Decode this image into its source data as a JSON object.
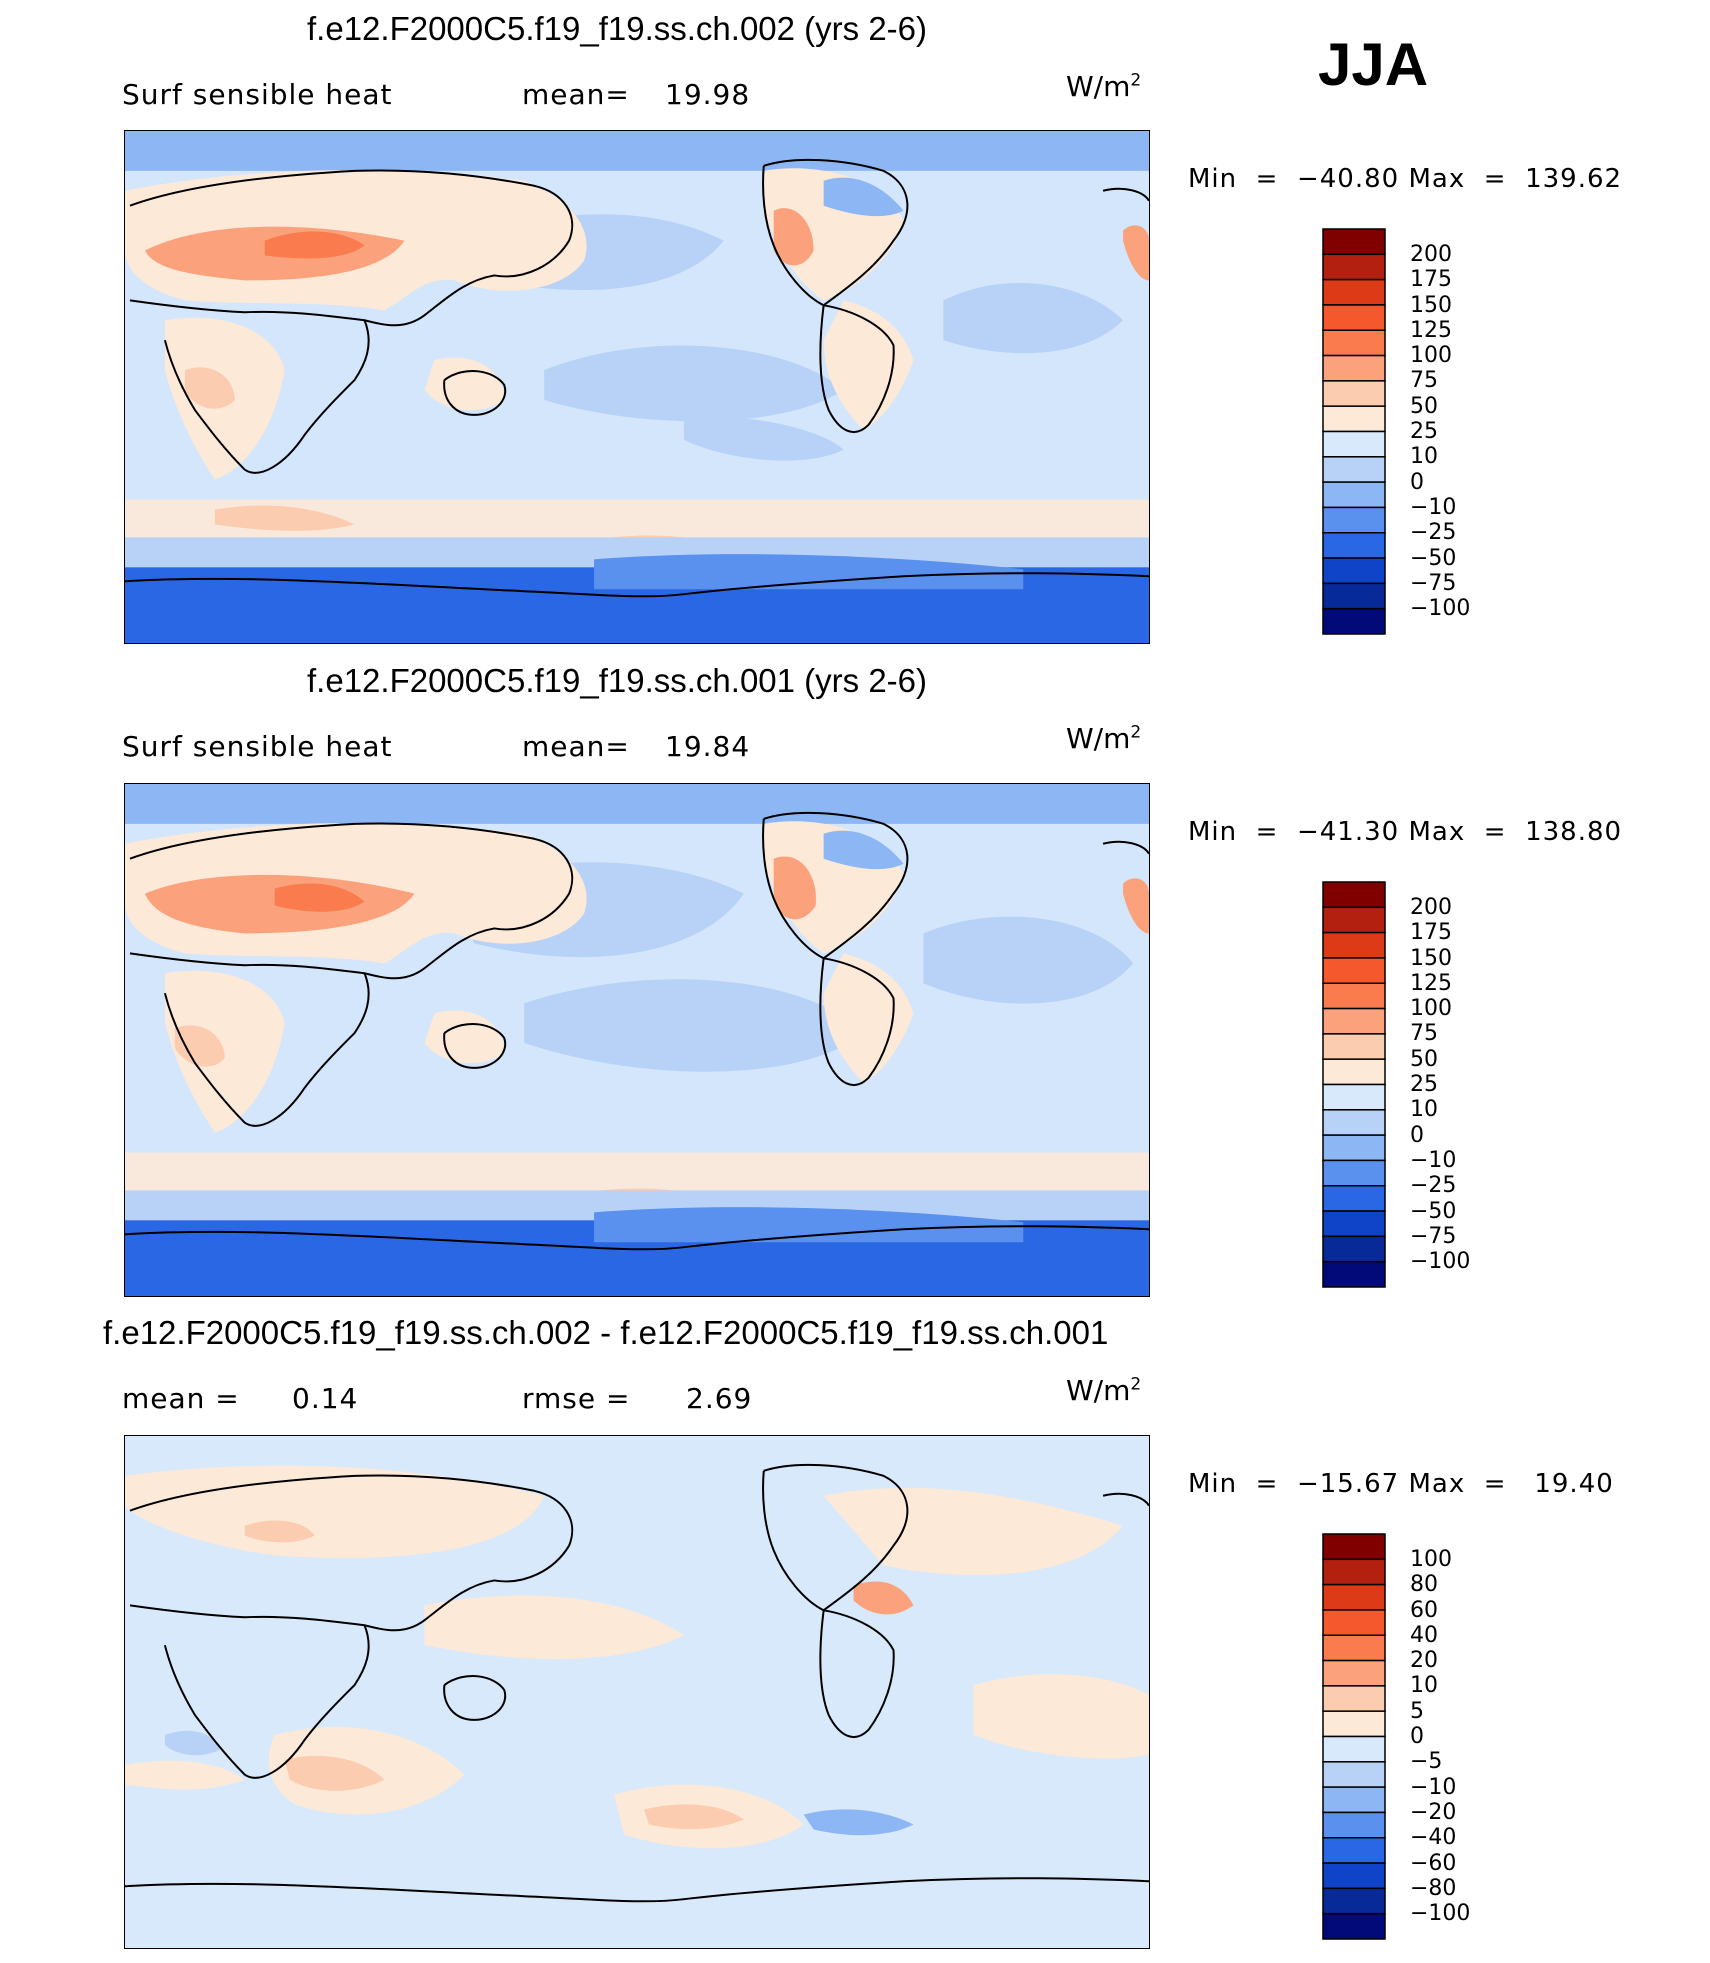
{
  "season": "JJA",
  "colors": {
    "ocean_base": "#d3e6fb",
    "land_base": "#fde3cf"
  },
  "panels": [
    {
      "title": "f.e12.F2000C5.f19_f19.ss.ch.002 (yrs 2-6)",
      "left_label": "Surf  sensible  heat",
      "stat_label": "mean=",
      "stat_value": "19.98",
      "units": "W/m",
      "units_exp": "2",
      "min_label": "Min",
      "min_value": "−40.80",
      "max_label": "Max",
      "max_value": "139.62",
      "cbar_labels": [
        "200",
        "175",
        "150",
        "125",
        "100",
        "75",
        "50",
        "25",
        "10",
        "0",
        "−10",
        "−25",
        "−50",
        "−75",
        "−100"
      ],
      "cbar_colors": [
        "#800000",
        "#b3200f",
        "#dd3a17",
        "#f6582e",
        "#fa7b4d",
        "#fba27c",
        "#fcccb0",
        "#fde9d8",
        "#d7e9fa",
        "#b8d2f7",
        "#8cb6f4",
        "#5a91ee",
        "#2a67e4",
        "#0f43c8",
        "#082a98",
        "#020a7a"
      ]
    },
    {
      "title": "f.e12.F2000C5.f19_f19.ss.ch.001 (yrs 2-6)",
      "left_label": "Surf  sensible  heat",
      "stat_label": "mean=",
      "stat_value": "19.84",
      "units": "W/m",
      "units_exp": "2",
      "min_label": "Min",
      "min_value": "−41.30",
      "max_label": "Max",
      "max_value": "138.80",
      "cbar_labels": [
        "200",
        "175",
        "150",
        "125",
        "100",
        "75",
        "50",
        "25",
        "10",
        "0",
        "−10",
        "−25",
        "−50",
        "−75",
        "−100"
      ],
      "cbar_colors": [
        "#800000",
        "#b3200f",
        "#dd3a17",
        "#f6582e",
        "#fa7b4d",
        "#fba27c",
        "#fcccb0",
        "#fde9d8",
        "#d7e9fa",
        "#b8d2f7",
        "#8cb6f4",
        "#5a91ee",
        "#2a67e4",
        "#0f43c8",
        "#082a98",
        "#020a7a"
      ]
    },
    {
      "title": "f.e12.F2000C5.f19_f19.ss.ch.002 - f.e12.F2000C5.f19_f19.ss.ch.001",
      "left_label": "mean  =",
      "left_value": "0.14",
      "stat_label": "rmse  =",
      "stat_value": "2.69",
      "units": "W/m",
      "units_exp": "2",
      "min_label": "Min",
      "min_value": "−15.67",
      "max_label": "Max",
      "max_value": "19.40",
      "cbar_labels": [
        "100",
        "80",
        "60",
        "40",
        "20",
        "10",
        "5",
        "0",
        "−5",
        "−10",
        "−20",
        "−40",
        "−60",
        "−80",
        "−100"
      ],
      "cbar_colors": [
        "#800000",
        "#b3200f",
        "#dd3a17",
        "#f6582e",
        "#fa7b4d",
        "#fba27c",
        "#fcccb0",
        "#fde9d8",
        "#d7e9fa",
        "#b8d2f7",
        "#8cb6f4",
        "#5a91ee",
        "#2a67e4",
        "#0f43c8",
        "#082a98",
        "#020a7a"
      ]
    }
  ]
}
